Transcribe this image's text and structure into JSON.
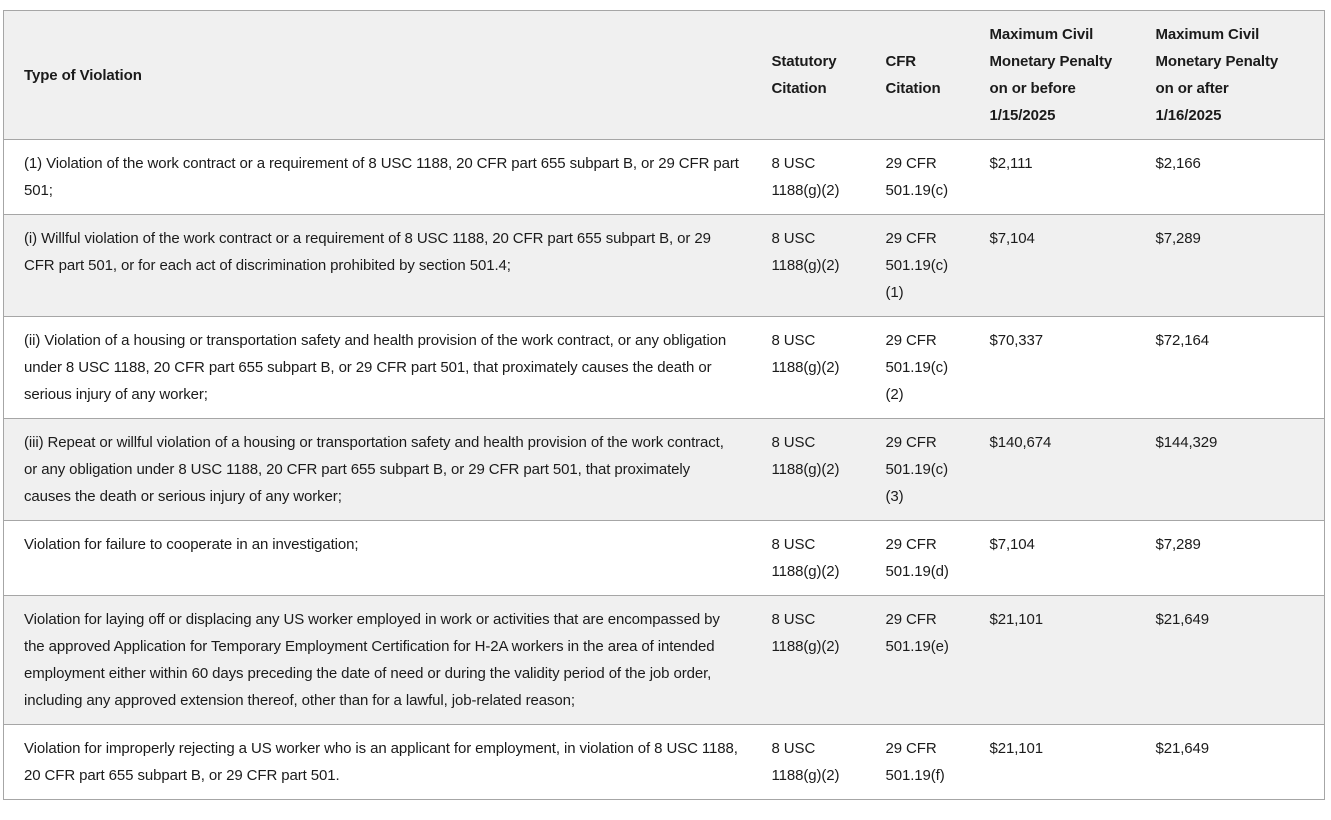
{
  "colors": {
    "header_bg": "#f0f0f0",
    "shaded_row_bg": "#f0f0f0",
    "border": "#a6a6a6",
    "text": "#1b1b1b"
  },
  "table": {
    "header": {
      "violation": "Type of Violation",
      "statutory": "Statutory\nCitation",
      "cfr": "CFR\nCitation",
      "penalty_before": "Maximum Civil\nMonetary Penalty\non or before\n1/15/2025",
      "penalty_after": "Maximum Civil\nMonetary Penalty\non or after\n1/16/2025"
    },
    "rows": [
      {
        "violation": "(1) Violation of the work contract or a requirement of 8 USC 1188, 20 CFR part 655 subpart B, or 29 CFR part 501;",
        "statutory": "8 USC\n1188(g)(2)",
        "cfr": "29 CFR\n501.19(c)",
        "penalty_before": "$2,111",
        "penalty_after": "$2,166"
      },
      {
        "violation": "(i) Willful violation of the work contract or a requirement of 8 USC 1188, 20 CFR part 655 subpart B, or 29 CFR part 501, or for each act of discrimination prohibited by section 501.4;",
        "statutory": "8 USC\n1188(g)(2)",
        "cfr": "29 CFR\n501.19(c)\n(1)",
        "penalty_before": "$7,104",
        "penalty_after": "$7,289"
      },
      {
        "violation": "(ii) Violation of a housing or transportation safety and health provision of the work contract, or any obligation under 8 USC 1188, 20 CFR part 655 subpart B, or 29 CFR part 501, that proximately causes the death or serious injury of any worker;",
        "statutory": "8 USC\n1188(g)(2)",
        "cfr": "29 CFR\n501.19(c)\n(2)",
        "penalty_before": "$70,337",
        "penalty_after": "$72,164"
      },
      {
        "violation": "(iii) Repeat or willful violation of a housing or transportation safety and health provision of the work contract, or any obligation under 8 USC 1188, 20 CFR part 655 subpart B, or 29 CFR part 501, that proximately causes the death or serious injury of any worker;",
        "statutory": "8 USC\n1188(g)(2)",
        "cfr": "29 CFR\n501.19(c)\n(3)",
        "penalty_before": "$140,674",
        "penalty_after": "$144,329"
      },
      {
        "violation": "Violation for failure to cooperate in an investigation;",
        "statutory": "8 USC\n1188(g)(2)",
        "cfr": "29 CFR\n501.19(d)",
        "penalty_before": "$7,104",
        "penalty_after": "$7,289"
      },
      {
        "violation": "Violation for laying off or displacing any US worker employed in work or activities that are encompassed by the approved Application for Temporary Employment Certification for H-2A workers in the area of intended employment either within 60 days preceding the date of need or during the validity period of the job order, including any approved extension thereof, other than for a lawful, job-related reason;",
        "statutory": "8 USC\n1188(g)(2)",
        "cfr": "29 CFR\n501.19(e)",
        "penalty_before": "$21,101",
        "penalty_after": "$21,649"
      },
      {
        "violation": "Violation for improperly rejecting a US worker who is an applicant for employment, in violation of 8 USC 1188, 20 CFR part 655 subpart B, or 29 CFR part 501.",
        "statutory": "8 USC\n1188(g)(2)",
        "cfr": "29 CFR\n501.19(f)",
        "penalty_before": "$21,101",
        "penalty_after": "$21,649"
      }
    ]
  }
}
